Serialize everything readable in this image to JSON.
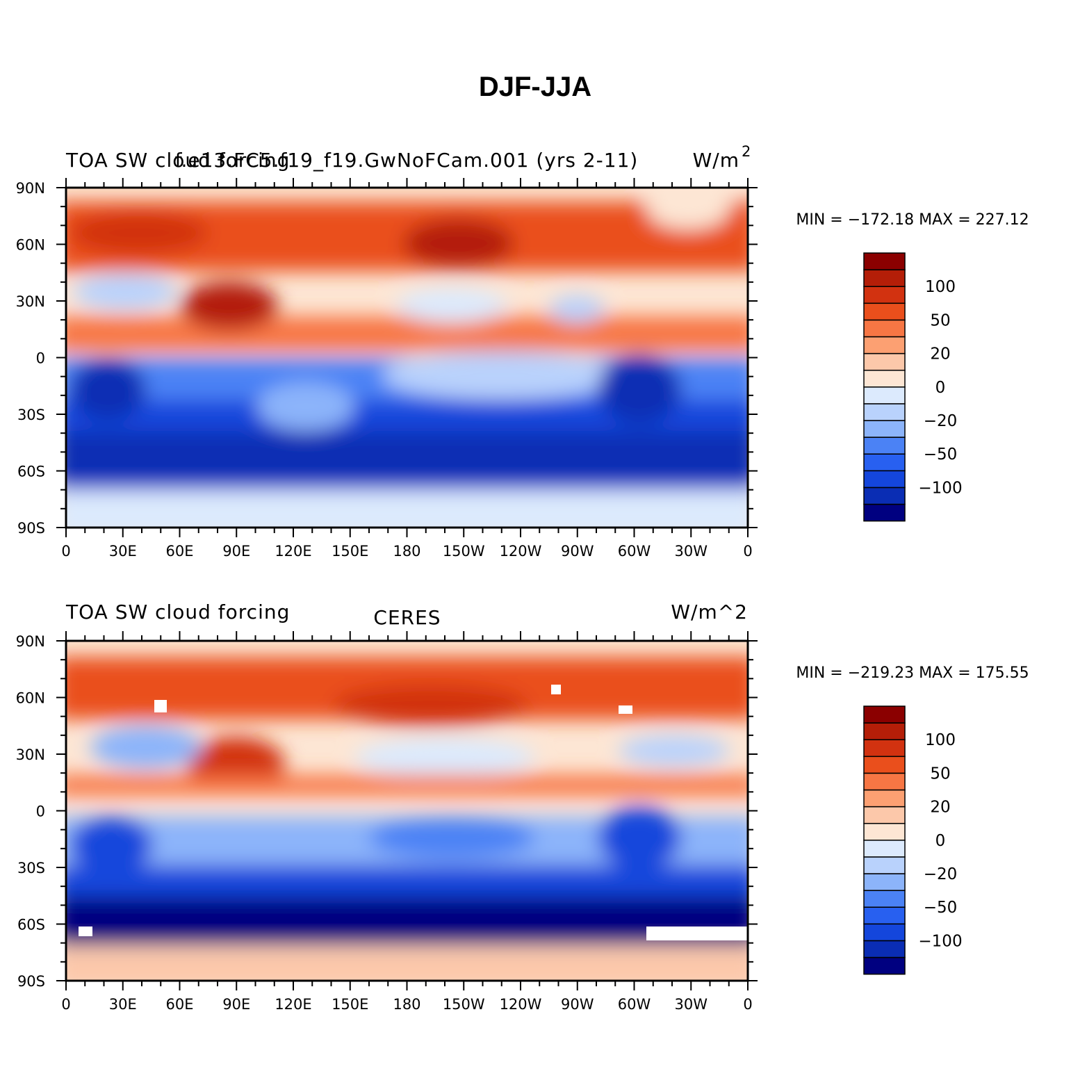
{
  "figure_title": "DJF-JJA",
  "chart_data": [
    {
      "type": "heatmap",
      "map": "global lat-lon contour map",
      "left_label": "TOA SW cloud forcing",
      "center_label": "f.e13.FC5.f19_f19.GwNoFCam.001 (yrs 2-11)",
      "right_label": "W/m",
      "right_label_superscript": "2",
      "stat_text": "MIN = −172.18 MAX = 227.12",
      "min": -172.18,
      "max": 227.12,
      "x_tick_labels": [
        "0",
        "30E",
        "60E",
        "90E",
        "120E",
        "150E",
        "180",
        "150W",
        "120W",
        "90W",
        "60W",
        "30W",
        "0"
      ],
      "y_tick_labels": [
        "90N",
        "60N",
        "30N",
        "0",
        "30S",
        "60S",
        "90S"
      ],
      "xlim": [
        0,
        360
      ],
      "ylim": [
        -90,
        90
      ],
      "colorbar_labels": [
        "100",
        "50",
        "20",
        "0",
        "−20",
        "−50",
        "−100"
      ]
    },
    {
      "type": "heatmap",
      "map": "global lat-lon contour map",
      "left_label": "TOA SW cloud forcing",
      "center_label": "CERES",
      "right_label": "W/m^2",
      "right_label_superscript": "",
      "stat_text": "MIN = −219.23 MAX = 175.55",
      "min": -219.23,
      "max": 175.55,
      "x_tick_labels": [
        "0",
        "30E",
        "60E",
        "90E",
        "120E",
        "150E",
        "180",
        "150W",
        "120W",
        "90W",
        "60W",
        "30W",
        "0"
      ],
      "y_tick_labels": [
        "90N",
        "60N",
        "30N",
        "0",
        "30S",
        "60S",
        "90S"
      ],
      "xlim": [
        0,
        360
      ],
      "ylim": [
        -90,
        90
      ],
      "colorbar_labels": [
        "100",
        "50",
        "20",
        "0",
        "−20",
        "−50",
        "−100"
      ]
    }
  ],
  "palette": [
    "#000080",
    "#0a2db4",
    "#1446dc",
    "#2860f0",
    "#4b82f5",
    "#8cb4fa",
    "#b9d2fc",
    "#dceafd",
    "#fde6d4",
    "#fcc8aa",
    "#fca072",
    "#f77644",
    "#ea4f1c",
    "#d23210",
    "#b41e08",
    "#8b0000"
  ]
}
